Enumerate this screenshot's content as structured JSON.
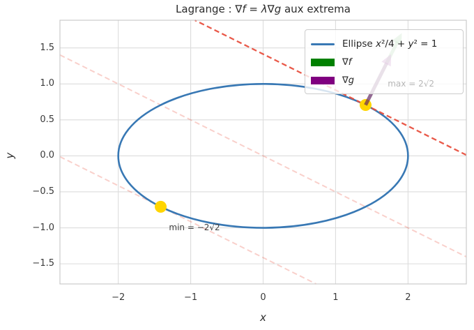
{
  "figure": {
    "title_parts": [
      {
        "t": "Lagrange : ∇",
        "i": false
      },
      {
        "t": "f",
        "i": true
      },
      {
        "t": " = ",
        "i": false
      },
      {
        "t": "λ",
        "i": true
      },
      {
        "t": "∇",
        "i": false
      },
      {
        "t": "g",
        "i": true
      },
      {
        "t": " aux extrema",
        "i": false
      }
    ],
    "xlabel": "x",
    "ylabel": "y"
  },
  "chart_data": {
    "type": "line",
    "title": "Lagrange : ∇f = λ∇g aux extrema",
    "xlabel": "x",
    "ylabel": "y",
    "grid": true,
    "legend_position": "upper right",
    "xlim": [
      -2.805,
      2.805
    ],
    "ylim": [
      -1.78,
      1.885
    ],
    "xticks": [
      -2,
      -1,
      0,
      1,
      2
    ],
    "xtick_labels": [
      "−2",
      "−1",
      "0",
      "1",
      "2"
    ],
    "yticks": [
      1.5,
      1.0,
      0.5,
      0.0,
      -0.5,
      -1.0,
      -1.5
    ],
    "ytick_labels": [
      "1.5",
      "1.0",
      "0.5",
      "0.0",
      "−0.5",
      "−1.0",
      "−1.5"
    ],
    "constraint_ellipse": {
      "equation": "x²/4 + y² = 1",
      "cx": 0,
      "cy": 0,
      "rx": 2,
      "ry": 1,
      "color": "#3878b4",
      "line_width": 2.6
    },
    "objective_level_lines": {
      "equation_form": "x + 2y = c",
      "lines": [
        {
          "name": "level-max",
          "c": 2.8284,
          "color": "#e8503f",
          "opacity": 0.95,
          "width": 2.3
        },
        {
          "name": "level-zero",
          "c": 0,
          "color": "#e8503f",
          "opacity": 0.27,
          "width": 2.0
        },
        {
          "name": "level-min",
          "c": -2.8284,
          "color": "#e8503f",
          "opacity": 0.27,
          "width": 2.0
        }
      ],
      "dash": "7.5,4.5"
    },
    "extrema_points": {
      "color": "#ffd500",
      "radius_px": 8.5,
      "points": [
        {
          "label": "max",
          "x": 1.4142,
          "y": 0.7071
        },
        {
          "label": "min",
          "x": -1.4142,
          "y": -0.7071
        }
      ]
    },
    "gradient_arrows": [
      {
        "name": "grad-f-arrow",
        "from": [
          1.4142,
          0.7071
        ],
        "vec": [
          0.5,
          1.0
        ],
        "color": "#008000",
        "opacity": 0.35
      },
      {
        "name": "grad-g-arrow",
        "from": [
          1.4142,
          0.7071
        ],
        "vec": [
          0.3536,
          0.7071
        ],
        "color": "#800080",
        "opacity": 0.5
      }
    ],
    "annotations": [
      {
        "id": "max",
        "text": "max = 2√2",
        "x": 1.72,
        "y": 0.99,
        "color": "#b7b7b7"
      },
      {
        "id": "min",
        "text": "min = −2√2",
        "x": -1.3,
        "y": -1.0,
        "color": "#3f3f3f"
      }
    ],
    "legend": [
      {
        "id": "ellipse",
        "swatch": "line",
        "color": "#3878b4",
        "parts": [
          {
            "t": "Ellipse ",
            "i": false
          },
          {
            "t": "x",
            "i": true
          },
          {
            "t": "²/4 + ",
            "i": false
          },
          {
            "t": "y",
            "i": true
          },
          {
            "t": "² = 1",
            "i": false
          }
        ]
      },
      {
        "id": "grad-f",
        "swatch": "patch",
        "color": "#008000",
        "parts": [
          {
            "t": "∇",
            "i": false
          },
          {
            "t": "f",
            "i": true
          }
        ]
      },
      {
        "id": "grad-g",
        "swatch": "patch",
        "color": "#800080",
        "parts": [
          {
            "t": "∇",
            "i": false
          },
          {
            "t": "g",
            "i": true
          }
        ]
      }
    ],
    "style": {
      "grid_color": "#dcdcdc",
      "spine_color": "#cacaca",
      "background": "#ffffff"
    }
  }
}
